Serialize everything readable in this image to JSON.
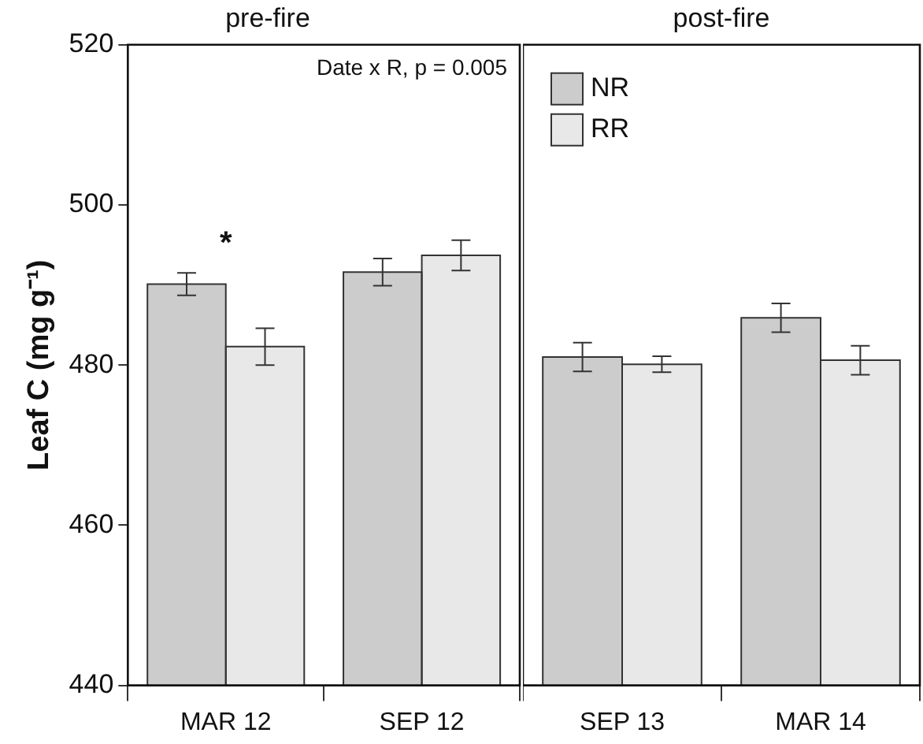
{
  "chart_data": [
    {
      "type": "bar",
      "title": "pre-fire",
      "ylabel": "Leaf C (mg g⁻¹)",
      "categories": [
        "MAR 12",
        "SEP 12"
      ],
      "series": [
        {
          "color": "#cccccc",
          "values": [
            490.1,
            491.6
          ],
          "errors": [
            1.4,
            1.7
          ]
        },
        {
          "color": "#e8e8e8",
          "values": [
            482.3,
            493.7
          ],
          "errors": [
            2.3,
            1.9
          ]
        }
      ],
      "ylim": [
        440,
        520
      ],
      "yticks": [
        440,
        460,
        480,
        500,
        520
      ],
      "grid": false,
      "legend": false,
      "annotations": [
        "Date x R, p = 0.005",
        "*"
      ]
    },
    {
      "type": "bar",
      "title": "post-fire",
      "categories": [
        "SEP 13",
        "MAR 14"
      ],
      "series": [
        {
          "name": "NR",
          "color": "#cccccc",
          "values": [
            481.0,
            485.9
          ],
          "errors": [
            1.8,
            1.8
          ]
        },
        {
          "name": "RR",
          "color": "#e8e8e8",
          "values": [
            480.1,
            480.6
          ],
          "errors": [
            1.0,
            1.8
          ]
        }
      ],
      "ylim": [
        440,
        520
      ],
      "yticks": [
        440,
        460,
        480,
        500,
        520
      ],
      "grid": false,
      "legend": "top left",
      "tick_labels": "x"
    }
  ]
}
